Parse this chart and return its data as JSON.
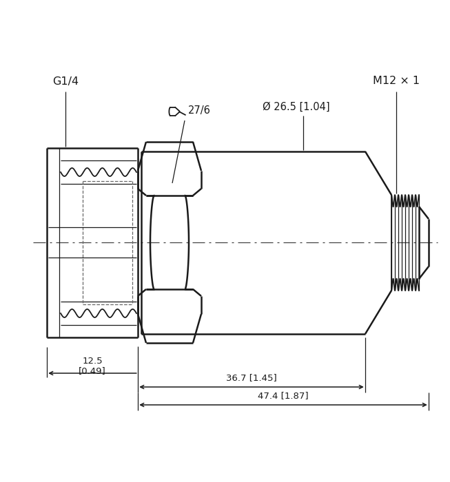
{
  "bg_color": "#ffffff",
  "line_color": "#1a1a1a",
  "dim_color": "#1a1a1a",
  "dash_color": "#555555",
  "labels": {
    "G14": "G1/4",
    "M12": "M12 × 1",
    "wrench": "27/6",
    "diameter": "Ø 26.5 [1.04]",
    "dim1_a": "12.5",
    "dim1_b": "[0.49]",
    "dim2": "36.7 [1.45]",
    "dim3": "47.4 [1.87]"
  },
  "figsize": [
    6.53,
    7.0
  ],
  "dpi": 100,
  "lw_heavy": 1.8,
  "lw_med": 1.3,
  "lw_thin": 0.9
}
